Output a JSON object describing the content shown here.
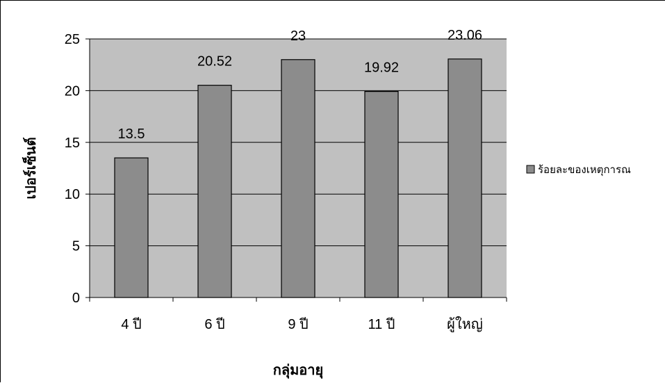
{
  "chart_data": {
    "type": "bar",
    "categories": [
      "4 ปี",
      "6 ปี",
      "9 ปี",
      "11 ปี",
      "ผู้ใหญ่"
    ],
    "series": [
      {
        "name": "ร้อยละของเหตุการณ",
        "values": [
          13.5,
          20.52,
          23,
          19.92,
          23.06
        ]
      }
    ],
    "data_labels": [
      "13.5",
      "20.52",
      "23",
      "19.92",
      "23.06"
    ],
    "title": "",
    "xlabel": "กลุ่มอายุ",
    "ylabel": "เปอร์เซ็นต์",
    "ylim": [
      0,
      25
    ],
    "yticks": [
      0,
      5,
      10,
      15,
      20,
      25
    ],
    "grid": true,
    "legend": "right",
    "colors": {
      "plot_background": "#c0c0c0",
      "bar_fill": "#8c8c8c",
      "bar_stroke": "#000000",
      "gridline": "#000000"
    }
  }
}
